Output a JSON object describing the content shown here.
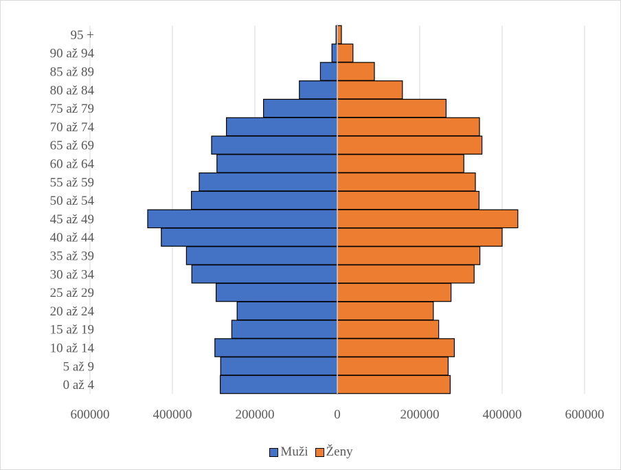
{
  "chart_data": {
    "type": "bar",
    "orientation": "horizontal",
    "subtype": "population-pyramid",
    "categories": [
      "0 až 4",
      "5 až 9",
      "10 až 14",
      "15 až 19",
      "20 až 24",
      "25 až 29",
      "30 až 34",
      "35 až 39",
      "40 až 44",
      "45 až 49",
      "50 až 54",
      "55 až 59",
      "60 až 64",
      "65 až 69",
      "70 až 74",
      "75 až 79",
      "80 až 84",
      "85 až 89",
      "90 až 94",
      "95 +"
    ],
    "series": [
      {
        "name": "Muži",
        "color": "#4472c4",
        "values": [
          284000,
          283000,
          297000,
          256000,
          243000,
          294000,
          353000,
          366000,
          427000,
          460000,
          354000,
          335000,
          292000,
          305000,
          269000,
          179000,
          92000,
          41000,
          13000,
          3000
        ]
      },
      {
        "name": "Ženy",
        "color": "#ed7d31",
        "values": [
          274000,
          269000,
          284000,
          246000,
          233000,
          276000,
          332000,
          346000,
          400000,
          438000,
          344000,
          335000,
          307000,
          351000,
          345000,
          264000,
          158000,
          90000,
          38000,
          10000
        ]
      }
    ],
    "xlim": [
      -600000,
      600000
    ],
    "xticks": [
      {
        "value": -600000,
        "label": "600000"
      },
      {
        "value": -400000,
        "label": "400000"
      },
      {
        "value": -200000,
        "label": "200000"
      },
      {
        "value": 0,
        "label": "0"
      },
      {
        "value": 200000,
        "label": "200000"
      },
      {
        "value": 400000,
        "label": "400000"
      },
      {
        "value": 600000,
        "label": "600000"
      }
    ],
    "title": "",
    "xlabel": "",
    "ylabel": "",
    "grid": "vertical",
    "legend_position": "bottom"
  }
}
